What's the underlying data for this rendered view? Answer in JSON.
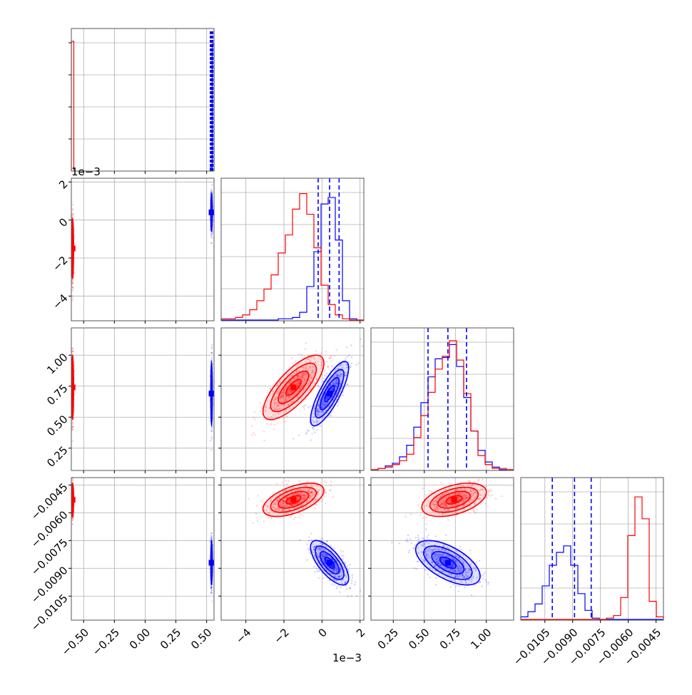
{
  "chart_data": {
    "type": "corner",
    "colors": {
      "red": "#ff0000",
      "blue": "#0000ff",
      "grid": "#b0b0b0",
      "axis": "#555555"
    },
    "params": [
      "p0",
      "p1",
      "p2",
      "p3"
    ],
    "axes": {
      "p0": {
        "range": [
          -0.6,
          0.56
        ],
        "ticks": [
          -0.5,
          -0.25,
          0.0,
          0.25,
          0.5
        ],
        "tick_labels": [
          "−0.50",
          "−0.25",
          "0.00",
          "0.25",
          "0.50"
        ]
      },
      "p1": {
        "range": [
          -0.0053,
          0.0022
        ],
        "ticks": [
          -0.004,
          -0.002,
          0.0,
          0.002
        ],
        "tick_labels": [
          "−4",
          "−2",
          "0",
          "2"
        ],
        "offset": "1e−3"
      },
      "p2": {
        "range": [
          0.07,
          1.22
        ],
        "ticks": [
          0.25,
          0.5,
          0.75,
          1.0
        ],
        "tick_labels": [
          "0.25",
          "0.50",
          "0.75",
          "1.00"
        ]
      },
      "p3": {
        "range": [
          -0.0118,
          -0.0041
        ],
        "ticks": [
          -0.0105,
          -0.009,
          -0.0075,
          -0.006,
          -0.0045
        ],
        "tick_labels": [
          "−0.0105",
          "−0.0090",
          "−0.0075",
          "−0.0060",
          "−0.0045"
        ]
      }
    },
    "series": [
      {
        "color": "red",
        "mean": [
          -0.59,
          -0.0015,
          0.74,
          -0.0053
        ],
        "std": [
          0.004,
          0.0008,
          0.13,
          0.00045
        ],
        "corr_12": 0.75,
        "corr_13": 0.55,
        "corr_23": 0.45
      },
      {
        "color": "blue",
        "mean": [
          0.54,
          0.0004,
          0.69,
          -0.0087
        ],
        "std": [
          0.003,
          0.0005,
          0.13,
          0.0006
        ],
        "corr_12": 0.8,
        "corr_13": -0.7,
        "corr_23": -0.6
      }
    ],
    "quantiles": {
      "p1": [
        -0.0002,
        0.0004,
        0.0009
      ],
      "p2": [
        0.53,
        0.69,
        0.84
      ],
      "p3": [
        -0.0101,
        -0.0089,
        -0.008
      ]
    },
    "diagonal_histograms": {
      "p0": {
        "red_edges": [
          -0.6,
          -0.58
        ],
        "red_counts": [
          1.0
        ],
        "blue_edges": [
          0.53,
          0.545,
          0.56
        ],
        "blue_counts": [
          0.02,
          0.98
        ]
      },
      "p1": {
        "bins": 20,
        "red": [
          0.01,
          0.01,
          0.02,
          0.04,
          0.08,
          0.15,
          0.24,
          0.35,
          0.52,
          0.66,
          0.86,
          0.98,
          0.82,
          0.56,
          0.27,
          0.12,
          0.04,
          0.01,
          0.0,
          0.0
        ],
        "blue": [
          0.0,
          0.0,
          0.0,
          0.0,
          0.0,
          0.0,
          0.0,
          0.0,
          0.01,
          0.01,
          0.02,
          0.06,
          0.26,
          0.53,
          0.9,
          0.95,
          0.62,
          0.15,
          0.01,
          0.0
        ]
      },
      "p2": {
        "bins": 20,
        "red": [
          0.0,
          0.01,
          0.02,
          0.04,
          0.07,
          0.12,
          0.25,
          0.42,
          0.6,
          0.78,
          0.88,
          1.0,
          0.85,
          0.59,
          0.3,
          0.11,
          0.04,
          0.01,
          0.01,
          0.0
        ],
        "blue": [
          0.0,
          0.01,
          0.03,
          0.05,
          0.1,
          0.19,
          0.33,
          0.52,
          0.72,
          0.86,
          0.87,
          0.97,
          0.8,
          0.56,
          0.3,
          0.15,
          0.06,
          0.02,
          0.0,
          0.0
        ]
      },
      "p3": {
        "bins": 20,
        "red": [
          0.0,
          0.0,
          0.0,
          0.0,
          0.0,
          0.0,
          0.0,
          0.0,
          0.0,
          0.0,
          0.0,
          0.0,
          0.01,
          0.03,
          0.17,
          0.65,
          0.95,
          0.78,
          0.14,
          0.02
        ],
        "blue": [
          0.02,
          0.06,
          0.12,
          0.26,
          0.42,
          0.52,
          0.57,
          0.42,
          0.2,
          0.07,
          0.01,
          0.0,
          0.0,
          0.0,
          0.0,
          0.0,
          0.0,
          0.0,
          0.0,
          0.0
        ]
      }
    }
  }
}
